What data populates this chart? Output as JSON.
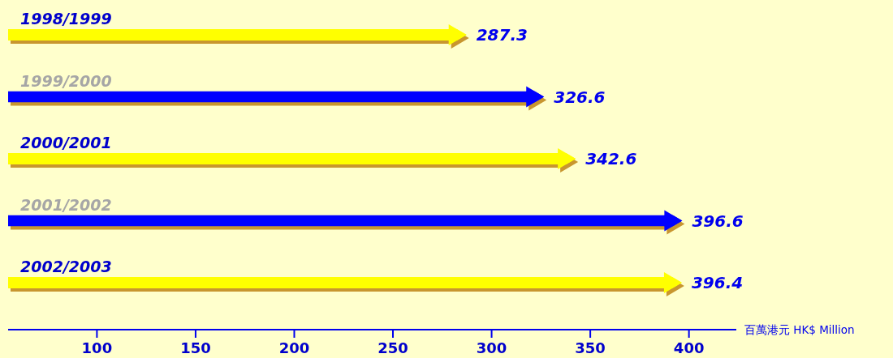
{
  "chart_data": {
    "type": "bar",
    "orientation": "horizontal",
    "categories": [
      "1998/1999",
      "1999/2000",
      "2000/2001",
      "2001/2002",
      "2002/2003"
    ],
    "values": [
      287.3,
      326.6,
      342.6,
      396.6,
      396.4
    ],
    "colors": [
      "#ffff00",
      "#0000ff",
      "#ffff00",
      "#0000ff",
      "#ffff00"
    ],
    "xlim": [
      55,
      424
    ],
    "xticks": [
      100,
      150,
      200,
      250,
      300,
      350,
      400
    ],
    "xlabel": "百萬港元 HK$ Million",
    "data_labels": true
  }
}
